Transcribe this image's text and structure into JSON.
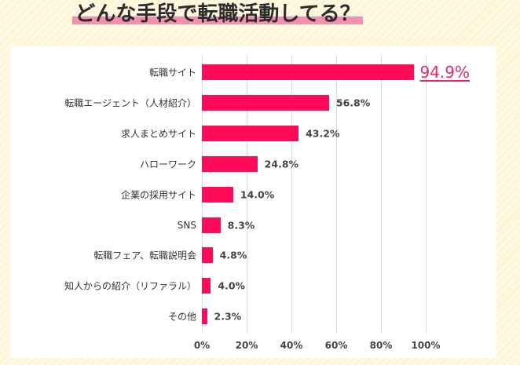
{
  "chart_data": {
    "type": "bar",
    "orientation": "horizontal",
    "title": "どんな手段で転職活動してる？",
    "categories": [
      "転職サイト",
      "転職エージェント（人材紹介）",
      "求人まとめサイト",
      "ハローワーク",
      "企業の採用サイト",
      "SNS",
      "転職フェア、転職説明会",
      "知人からの紹介（リファラル）",
      "その他"
    ],
    "values": [
      94.9,
      56.8,
      43.2,
      24.8,
      14.0,
      8.3,
      4.8,
      4.0,
      2.3
    ],
    "value_labels": [
      "94.9%",
      "56.8%",
      "43.2%",
      "24.8%",
      "14.0%",
      "8.3%",
      "4.8%",
      "4.0%",
      "2.3%"
    ],
    "highlight_index": 0,
    "xlim": [
      0,
      100
    ],
    "x_ticks": [
      0,
      20,
      40,
      60,
      80,
      100
    ],
    "x_tick_labels": [
      "0%",
      "20%",
      "40%",
      "60%",
      "80%",
      "100%"
    ],
    "grid": true,
    "bar_color": "#ff0b5a",
    "highlight_color": "#e6286a"
  }
}
